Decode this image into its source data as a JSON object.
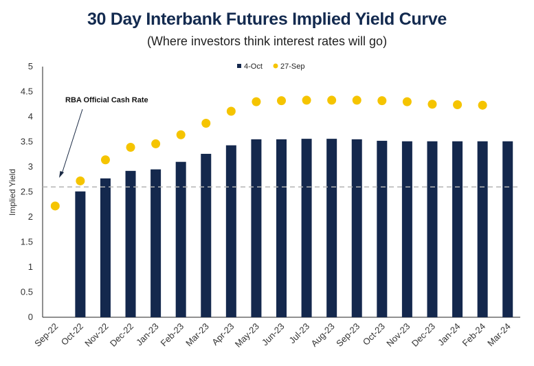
{
  "chart_data": {
    "type": "bar",
    "title": "30 Day Interbank Futures Implied Yield Curve",
    "subtitle": "(Where investors think interest rates will go)",
    "ylabel": "Implied Yield",
    "xlabel": "",
    "ylim": [
      0,
      5
    ],
    "yticks": [
      "0",
      "0.5",
      "1",
      "1.5",
      "2",
      "2.5",
      "3",
      "3.5",
      "4",
      "4.5",
      "5"
    ],
    "categories": [
      "Sep-22",
      "Oct-22",
      "Nov-22",
      "Dec-22",
      "Jan-23",
      "Feb-23",
      "Mar-23",
      "Apr-23",
      "May-23",
      "Jun-23",
      "Jul-23",
      "Aug-23",
      "Sep-23",
      "Oct-23",
      "Nov-23",
      "Dec-23",
      "Jan-24",
      "Feb-24",
      "Mar-24"
    ],
    "series": [
      {
        "name": "4-Oct",
        "kind": "bar",
        "color": "#14284d",
        "values": [
          null,
          2.51,
          2.77,
          2.92,
          2.95,
          3.1,
          3.26,
          3.43,
          3.55,
          3.55,
          3.56,
          3.56,
          3.55,
          3.52,
          3.51,
          3.51,
          3.51,
          3.51,
          3.51
        ]
      },
      {
        "name": "27-Sep",
        "kind": "scatter",
        "color": "#f5c400",
        "values": [
          2.22,
          2.72,
          3.14,
          3.39,
          3.46,
          3.64,
          3.87,
          4.11,
          4.3,
          4.32,
          4.33,
          4.33,
          4.33,
          4.32,
          4.3,
          4.25,
          4.24,
          4.23,
          null
        ]
      }
    ],
    "reference_line": {
      "label": "RBA Official Cash Rate",
      "value": 2.6,
      "style": "dashed",
      "color": "#b3b3b3"
    },
    "legend": {
      "position": "top-center"
    },
    "grid": false
  }
}
